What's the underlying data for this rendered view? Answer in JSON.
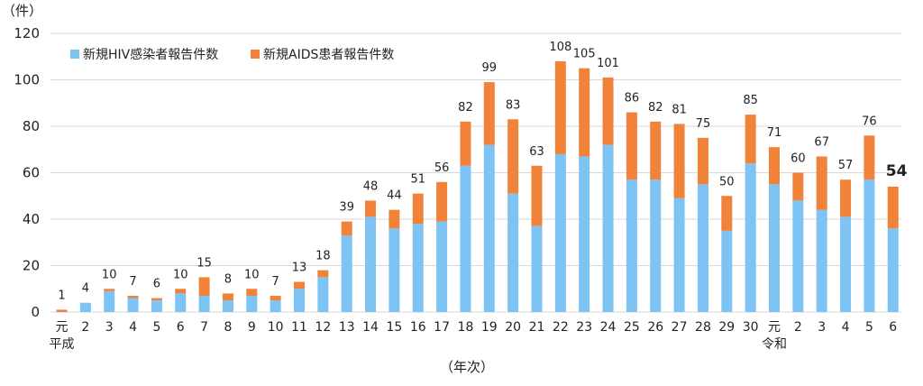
{
  "chart_data": {
    "type": "bar",
    "stacked": true,
    "ylabel": "（件）",
    "xlabel": "（年次）",
    "ylim": [
      0,
      120
    ],
    "yticks": [
      0,
      20,
      40,
      60,
      80,
      100,
      120
    ],
    "grid": true,
    "legend_position": "top-left",
    "categories": [
      "元",
      "2",
      "3",
      "4",
      "5",
      "6",
      "7",
      "8",
      "9",
      "10",
      "11",
      "12",
      "13",
      "14",
      "15",
      "16",
      "17",
      "18",
      "19",
      "20",
      "21",
      "22",
      "23",
      "24",
      "25",
      "26",
      "27",
      "28",
      "29",
      "30",
      "元",
      "2",
      "3",
      "4",
      "5",
      "6"
    ],
    "era_labels": [
      {
        "index": 0,
        "text": "平成"
      },
      {
        "index": 30,
        "text": "令和"
      }
    ],
    "series": [
      {
        "name": "新規HIV感染者報告件数",
        "color": "#7dc4f5",
        "values": [
          0,
          4,
          9,
          6,
          5,
          8,
          7,
          5,
          7,
          5,
          10,
          15,
          33,
          41,
          36,
          38,
          39,
          63,
          72,
          51,
          37,
          68,
          67,
          72,
          57,
          57,
          49,
          55,
          35,
          64,
          55,
          48,
          44,
          41,
          57,
          36
        ]
      },
      {
        "name": "新規AIDS患者報告件数",
        "color": "#f0823a",
        "values": [
          1,
          0,
          1,
          1,
          1,
          2,
          8,
          3,
          3,
          2,
          3,
          3,
          6,
          7,
          8,
          13,
          17,
          19,
          27,
          32,
          26,
          40,
          38,
          29,
          29,
          25,
          32,
          20,
          15,
          21,
          16,
          12,
          23,
          16,
          19,
          18
        ]
      }
    ],
    "totals": [
      1,
      4,
      10,
      7,
      6,
      10,
      15,
      8,
      10,
      7,
      13,
      18,
      39,
      48,
      44,
      51,
      56,
      82,
      99,
      83,
      63,
      108,
      105,
      101,
      86,
      82,
      81,
      75,
      50,
      85,
      71,
      60,
      67,
      57,
      76,
      54
    ]
  }
}
